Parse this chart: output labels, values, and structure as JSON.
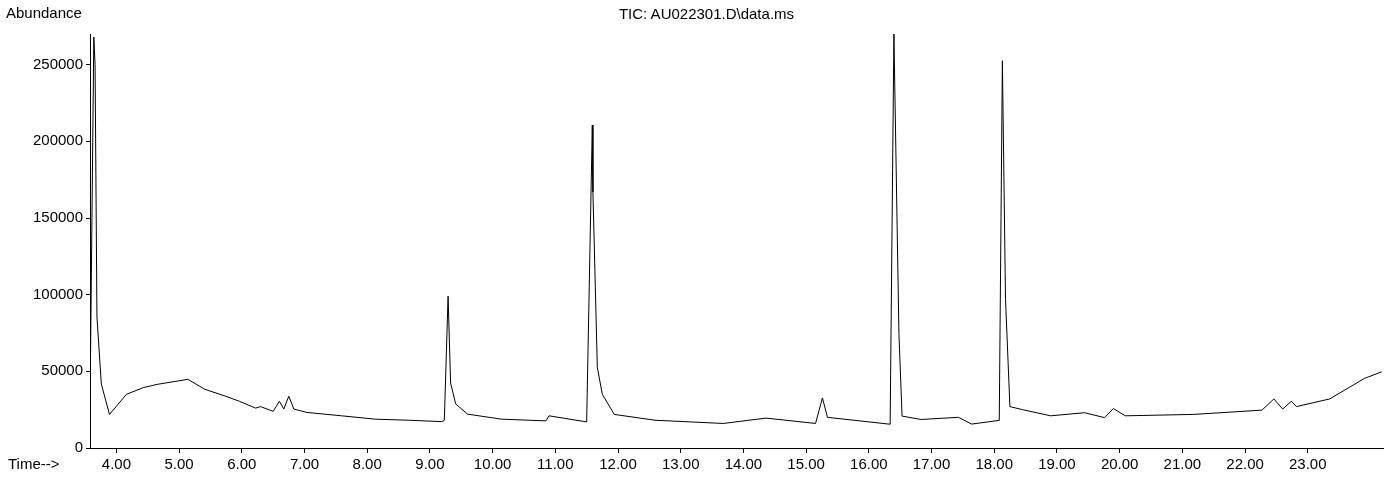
{
  "chart_data": {
    "type": "line",
    "title": "TIC: AU022301.D\\data.ms",
    "xlabel": "Time-->",
    "ylabel": "Abundance",
    "x": [
      3.58,
      3.64,
      3.66,
      3.69,
      3.76,
      3.89,
      4.16,
      4.43,
      4.65,
      5.14,
      5.41,
      5.74,
      5.96,
      6.22,
      6.3,
      6.5,
      6.6,
      6.67,
      6.75,
      6.83,
      7.04,
      7.59,
      8.13,
      8.67,
      9.19,
      9.23,
      9.29,
      9.33,
      9.41,
      9.6,
      10.14,
      10.85,
      10.9,
      11.5,
      11.59,
      11.6,
      11.67,
      11.75,
      11.94,
      12.59,
      13.68,
      14.36,
      15.15,
      15.26,
      15.34,
      16.34,
      16.4,
      16.48,
      16.53,
      16.83,
      17.43,
      17.64,
      18.08,
      18.13,
      18.18,
      18.25,
      18.45,
      18.9,
      19.44,
      19.76,
      19.9,
      20.09,
      21.18,
      22.27,
      22.46,
      22.6,
      22.74,
      22.82,
      23.35,
      23.9,
      24.18
    ],
    "series": [
      {
        "color": "#000000",
        "values": [
          30000,
          268000,
          250000,
          85500,
          41700,
          21900,
          35000,
          39400,
          41500,
          44800,
          38300,
          33800,
          30500,
          26000,
          27000,
          23900,
          30500,
          25400,
          33800,
          25400,
          23200,
          21000,
          18800,
          18100,
          17200,
          18100,
          99000,
          42400,
          28800,
          22100,
          18800,
          17700,
          21000,
          17000,
          210600,
          167000,
          52600,
          35000,
          21900,
          18100,
          16000,
          19500,
          16000,
          32700,
          20000,
          15500,
          270000,
          74700,
          20800,
          18600,
          20000,
          15600,
          18000,
          252600,
          96800,
          27000,
          25000,
          21000,
          23000,
          19800,
          25700,
          21000,
          21900,
          24700,
          32000,
          25400,
          30500,
          27000,
          32000,
          45300,
          49700
        ]
      }
    ],
    "xlim": [
      3.58,
      24.2
    ],
    "xticks": [
      {
        "value": 4,
        "label": "4.00"
      },
      {
        "value": 5,
        "label": "5.00"
      },
      {
        "value": 6,
        "label": "6.00"
      },
      {
        "value": 7,
        "label": "7.00"
      },
      {
        "value": 8,
        "label": "8.00"
      },
      {
        "value": 9,
        "label": "9.00"
      },
      {
        "value": 10,
        "label": "10.00"
      },
      {
        "value": 11,
        "label": "11.00"
      },
      {
        "value": 12,
        "label": "12.00"
      },
      {
        "value": 13,
        "label": "13.00"
      },
      {
        "value": 14,
        "label": "14.00"
      },
      {
        "value": 15,
        "label": "15.00"
      },
      {
        "value": 16,
        "label": "16.00"
      },
      {
        "value": 17,
        "label": "17.00"
      },
      {
        "value": 18,
        "label": "18.00"
      },
      {
        "value": 19,
        "label": "19.00"
      },
      {
        "value": 20,
        "label": "20.00"
      },
      {
        "value": 21,
        "label": "21.00"
      },
      {
        "value": 22,
        "label": "22.00"
      },
      {
        "value": 23,
        "label": "23.00"
      }
    ],
    "ylim": [
      0,
      270000
    ],
    "yticks": [
      0,
      50000,
      100000,
      150000,
      200000,
      250000
    ],
    "marker": "none",
    "line_style": "solid",
    "legend": false
  }
}
